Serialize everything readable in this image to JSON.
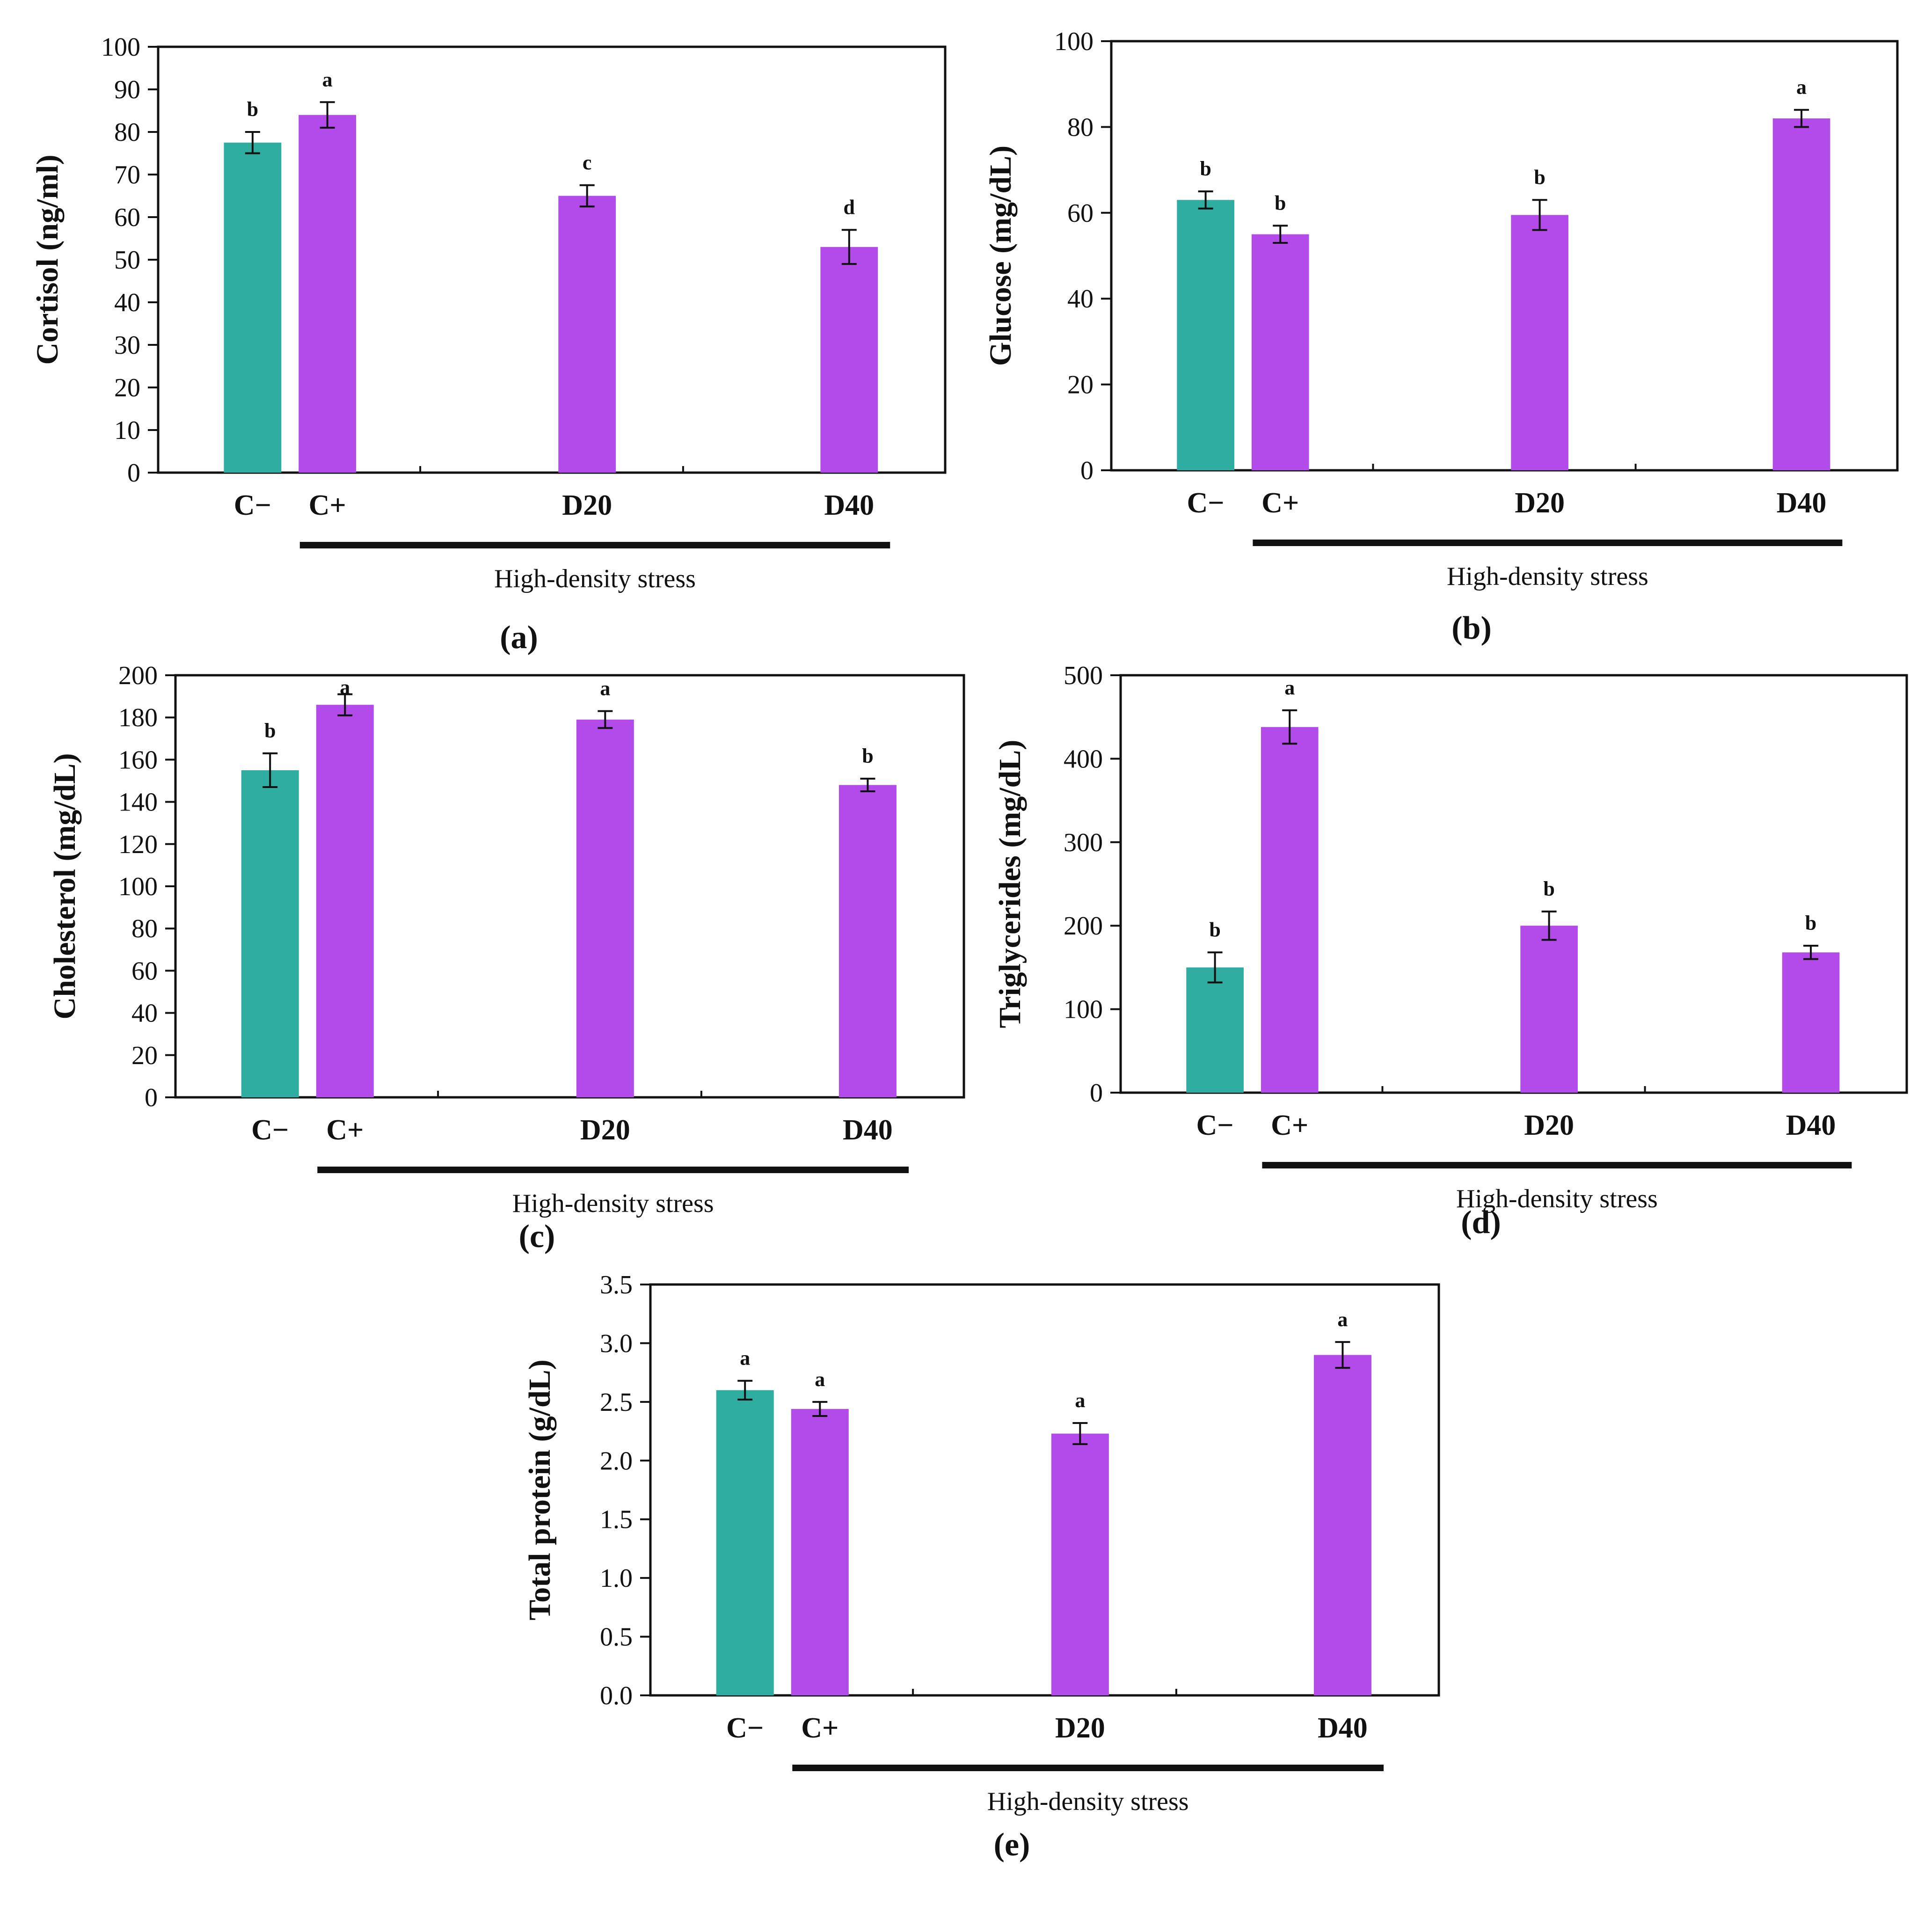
{
  "colors": {
    "control": "#2fada0",
    "stress": "#b24bea",
    "axis": "#111111"
  },
  "chart_data": [
    {
      "type": "bar",
      "panel": "(a)",
      "ylabel": "Cortisol (ng/ml)",
      "ylim": [
        0,
        100
      ],
      "yticks": [
        "0",
        "10",
        "20",
        "30",
        "40",
        "50",
        "60",
        "70",
        "80",
        "90",
        "100"
      ],
      "categories": [
        "C−",
        "C+",
        "D20",
        "D40"
      ],
      "values": [
        77.5,
        84,
        65,
        53
      ],
      "errors": [
        2.5,
        3,
        2.5,
        4
      ],
      "letters": [
        "b",
        "a",
        "c",
        "d"
      ],
      "group_label": "High-density stress"
    },
    {
      "type": "bar",
      "panel": "(b)",
      "ylabel": "Glucose (mg/dL)",
      "ylim": [
        0,
        100
      ],
      "yticks": [
        "0",
        "20",
        "40",
        "60",
        "80",
        "100"
      ],
      "categories": [
        "C−",
        "C+",
        "D20",
        "D40"
      ],
      "values": [
        63,
        55,
        59.5,
        82
      ],
      "errors": [
        2,
        2,
        3.5,
        2
      ],
      "letters": [
        "b",
        "b",
        "b",
        "a"
      ],
      "group_label": "High-density stress"
    },
    {
      "type": "bar",
      "panel": "(c)",
      "ylabel": "Cholesterol (mg/dL)",
      "ylim": [
        0,
        200
      ],
      "yticks": [
        "0",
        "20",
        "40",
        "60",
        "80",
        "100",
        "120",
        "140",
        "160",
        "180",
        "200"
      ],
      "categories": [
        "C−",
        "C+",
        "D20",
        "D40"
      ],
      "values": [
        155,
        186,
        179,
        148
      ],
      "errors": [
        8,
        5,
        4,
        3
      ],
      "letters": [
        "b",
        "a",
        "a",
        "b"
      ],
      "group_label": "High-density stress"
    },
    {
      "type": "bar",
      "panel": "(d)",
      "ylabel": "Triglycerides (mg/dL)",
      "ylim": [
        0,
        500
      ],
      "yticks": [
        "0",
        "100",
        "200",
        "300",
        "400",
        "500"
      ],
      "categories": [
        "C−",
        "C+",
        "D20",
        "D40"
      ],
      "values": [
        150,
        438,
        200,
        168
      ],
      "errors": [
        18,
        20,
        17,
        8
      ],
      "letters": [
        "b",
        "a",
        "b",
        "b"
      ],
      "group_label": "High-density stress"
    },
    {
      "type": "bar",
      "panel": "(e)",
      "ylabel": "Total protein (g/dL)",
      "ylim": [
        0,
        3.5
      ],
      "yticks": [
        "0.0",
        "0.5",
        "1.0",
        "1.5",
        "2.0",
        "2.5",
        "3.0",
        "3.5"
      ],
      "categories": [
        "C−",
        "C+",
        "D20",
        "D40"
      ],
      "values": [
        2.6,
        2.44,
        2.23,
        2.9
      ],
      "errors": [
        0.08,
        0.06,
        0.09,
        0.11
      ],
      "letters": [
        "a",
        "a",
        "a",
        "a"
      ],
      "group_label": "High-density stress"
    }
  ]
}
